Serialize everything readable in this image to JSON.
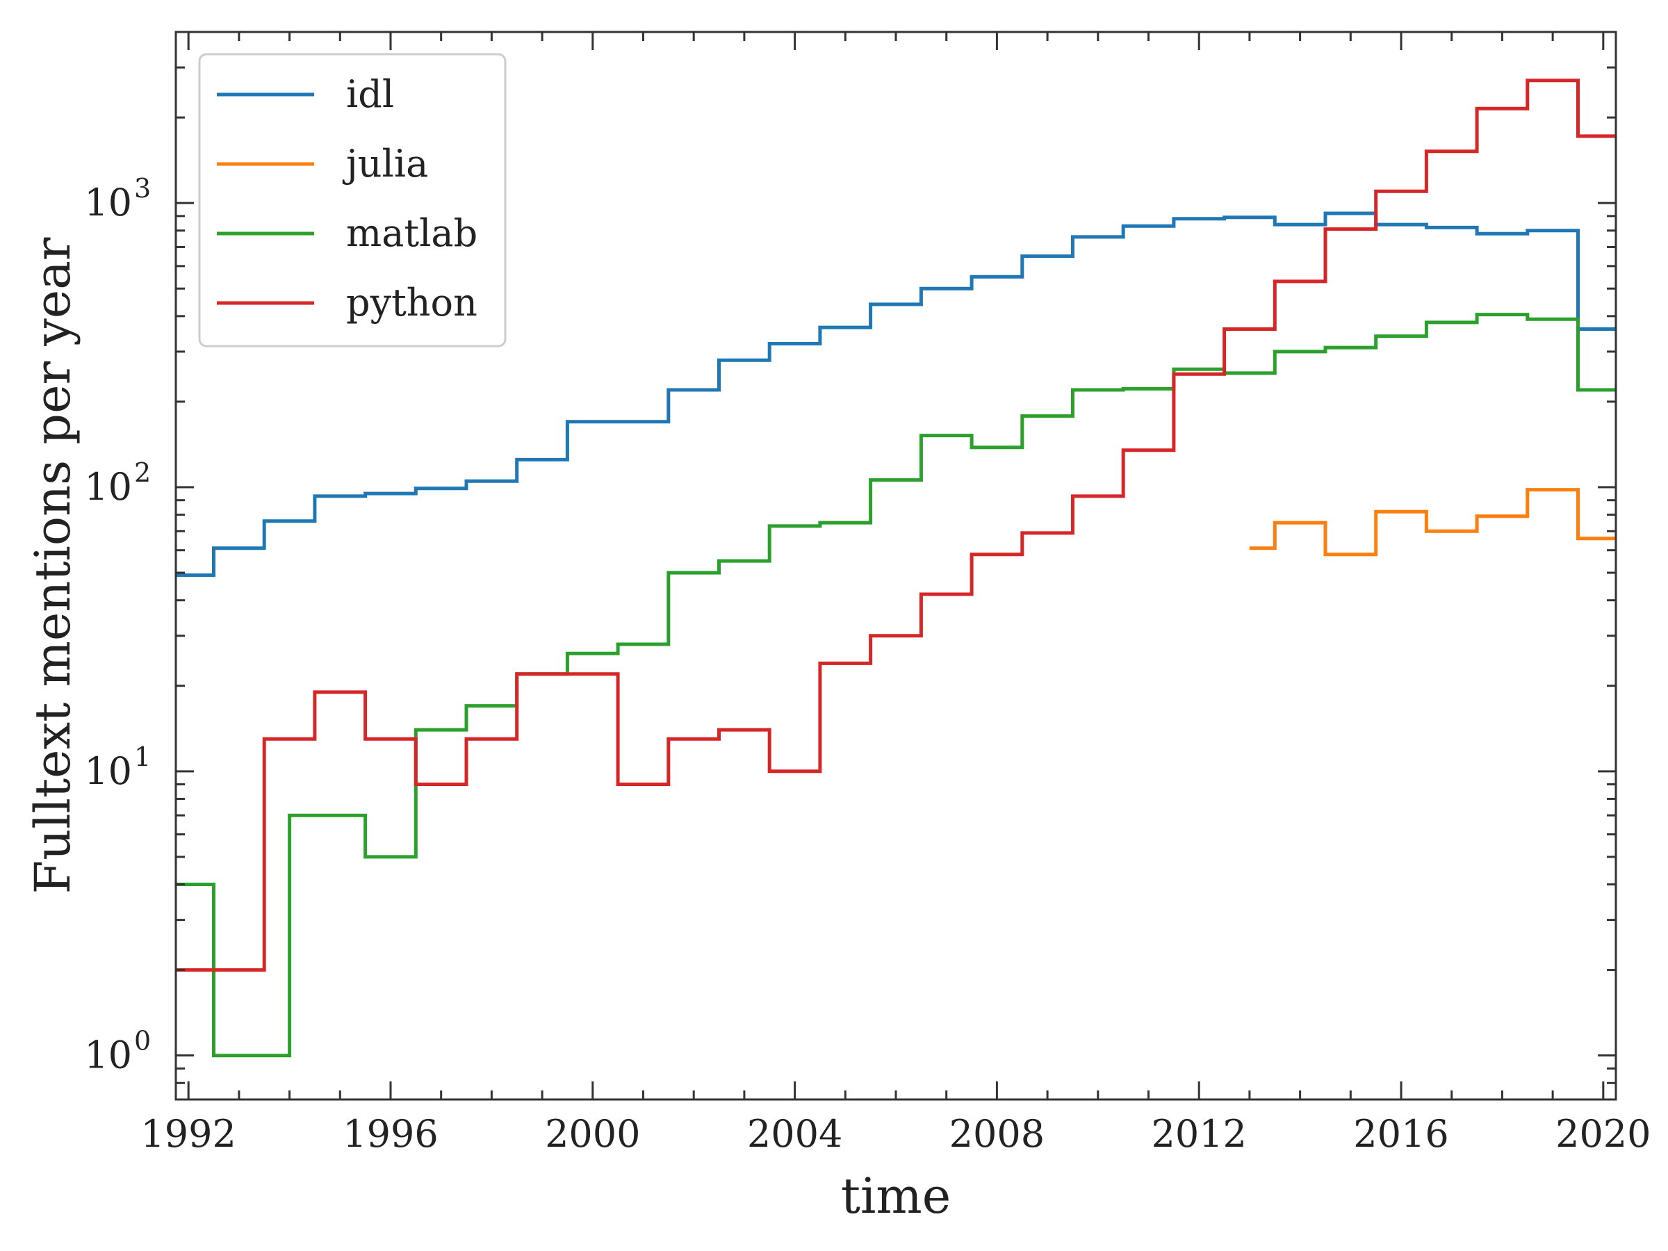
{
  "chart_data": {
    "type": "line",
    "step": true,
    "xlabel": "time",
    "ylabel": "Fulltext mentions per year",
    "y_scale": "log",
    "xlim": [
      1991.75,
      2020.25
    ],
    "ylim": [
      0.7,
      4000
    ],
    "x_ticks": [
      1992,
      1996,
      2000,
      2004,
      2008,
      2012,
      2016,
      2020
    ],
    "x_tick_labels": [
      "1992",
      "1996",
      "2000",
      "2004",
      "2008",
      "2012",
      "2016",
      "2020"
    ],
    "y_ticks": [
      {
        "value": 1,
        "base": "10",
        "exp": "0"
      },
      {
        "value": 10,
        "base": "10",
        "exp": "1"
      },
      {
        "value": 100,
        "base": "10",
        "exp": "2"
      },
      {
        "value": 1000,
        "base": "10",
        "exp": "3"
      }
    ],
    "grid": false,
    "legend_position": "top-left",
    "series": [
      {
        "name": "idl",
        "color": "#1f77b4",
        "x": [
          1991.75,
          1992.5,
          1993.5,
          1994.5,
          1995.5,
          1996.5,
          1997.5,
          1998.5,
          1999.5,
          2000.5,
          2001.5,
          2002.5,
          2003.5,
          2004.5,
          2005.5,
          2006.5,
          2007.5,
          2008.5,
          2009.5,
          2010.5,
          2011.5,
          2012.5,
          2013.5,
          2014.5,
          2015.5,
          2016.5,
          2017.5,
          2018.5,
          2019.5,
          2020.25
        ],
        "y": [
          49,
          61,
          76,
          93,
          95,
          99,
          105,
          125,
          170,
          170,
          220,
          280,
          320,
          365,
          440,
          500,
          550,
          650,
          760,
          830,
          880,
          890,
          840,
          920,
          840,
          820,
          780,
          800,
          360,
          360
        ]
      },
      {
        "name": "julia",
        "color": "#ff7f0e",
        "x": [
          2013.0,
          2013.5,
          2014.5,
          2015.5,
          2016.5,
          2017.5,
          2018.5,
          2019.5,
          2020.25
        ],
        "y": [
          61,
          75,
          58,
          82,
          70,
          79,
          98,
          66,
          66
        ]
      },
      {
        "name": "matlab",
        "color": "#2ca02c",
        "x": [
          1991.75,
          1992.5,
          1994.0,
          1995.5,
          1996.5,
          1997.5,
          1998.5,
          1999.5,
          2000.5,
          2001.5,
          2002.5,
          2003.5,
          2004.5,
          2005.5,
          2006.5,
          2007.5,
          2008.5,
          2009.5,
          2010.5,
          2011.5,
          2012.5,
          2013.5,
          2014.5,
          2015.5,
          2016.5,
          2017.5,
          2018.5,
          2019.5,
          2020.25
        ],
        "y": [
          4,
          1,
          7,
          5,
          14,
          17,
          22,
          26,
          28,
          50,
          55,
          73,
          75,
          106,
          152,
          138,
          178,
          220,
          222,
          260,
          252,
          300,
          310,
          340,
          380,
          405,
          390,
          220,
          220
        ]
      },
      {
        "name": "python",
        "color": "#d62728",
        "x": [
          1991.75,
          1993.5,
          1994.5,
          1995.5,
          1996.5,
          1997.5,
          1998.5,
          1999.5,
          2000.5,
          2001.5,
          2002.5,
          2003.5,
          2004.5,
          2005.5,
          2006.5,
          2007.5,
          2008.5,
          2009.5,
          2010.5,
          2011.5,
          2012.5,
          2013.5,
          2014.5,
          2015.5,
          2016.5,
          2017.5,
          2018.5,
          2019.5,
          2020.25
        ],
        "y": [
          2,
          13,
          19,
          13,
          9,
          13,
          22,
          22,
          9,
          13,
          14,
          10,
          24,
          30,
          42,
          58,
          69,
          93,
          135,
          250,
          360,
          530,
          810,
          1100,
          1520,
          2150,
          2700,
          1720,
          1720
        ]
      }
    ]
  }
}
